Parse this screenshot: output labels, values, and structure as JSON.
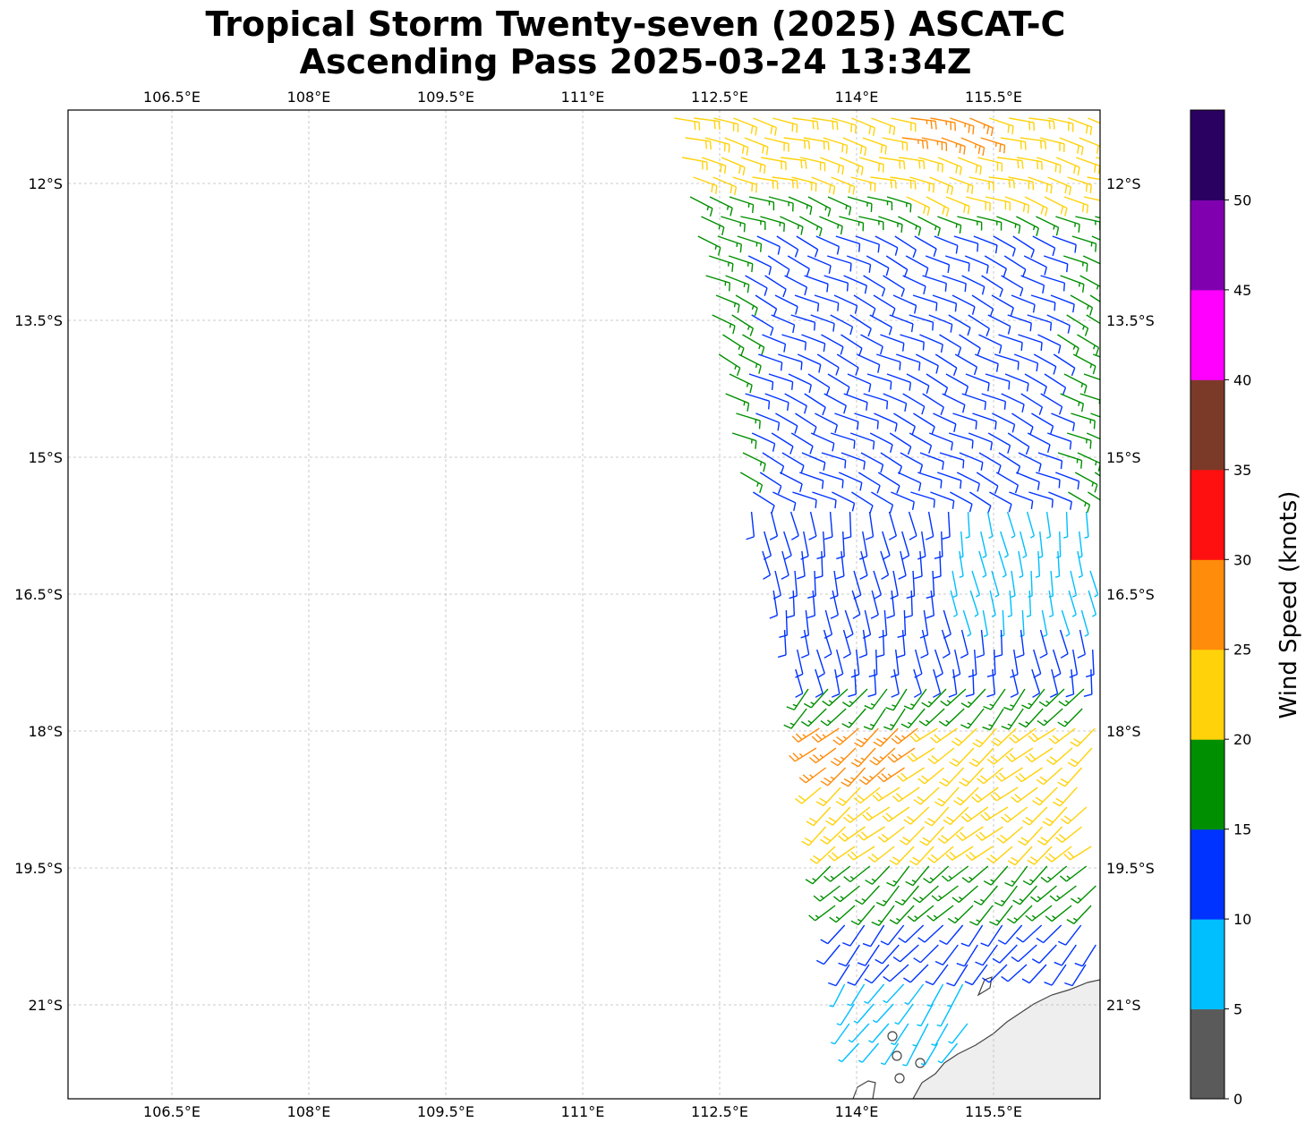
{
  "title": {
    "line1": "Tropical Storm Twenty-seven (2025) ASCAT-C",
    "line2": "Ascending Pass 2025-03-24 13:34Z"
  },
  "map": {
    "lon_labels": [
      "106.5°E",
      "108°E",
      "109.5°E",
      "111°E",
      "112.5°E",
      "114°E",
      "115.5°E"
    ],
    "lon_values": [
      106.5,
      108,
      109.5,
      111,
      112.5,
      114,
      115.5
    ],
    "lat_labels": [
      "12°S",
      "13.5°S",
      "15°S",
      "16.5°S",
      "18°S",
      "19.5°S",
      "21°S"
    ],
    "lat_values": [
      -12,
      -13.5,
      -15,
      -16.5,
      -18,
      -19.5,
      -21
    ],
    "grid": true,
    "land_color": "#eeeeee"
  },
  "colorbar": {
    "label": "Wind Speed (knots)",
    "ticks": [
      "0",
      "5",
      "10",
      "15",
      "20",
      "25",
      "30",
      "35",
      "40",
      "45",
      "50"
    ],
    "colors": [
      "#5a5a5a",
      "#00bfff",
      "#0033ff",
      "#008f00",
      "#ffd20a",
      "#ff8c0a",
      "#ff1010",
      "#7b3a28",
      "#ff00ff",
      "#8000b0",
      "#2a0060"
    ]
  },
  "legend_colors": {
    "5-10": "#00bfff",
    "10-15": "#0033ff",
    "15-20": "#008f00",
    "20-25": "#ffd20a",
    "25-30": "#ff8c0a"
  }
}
